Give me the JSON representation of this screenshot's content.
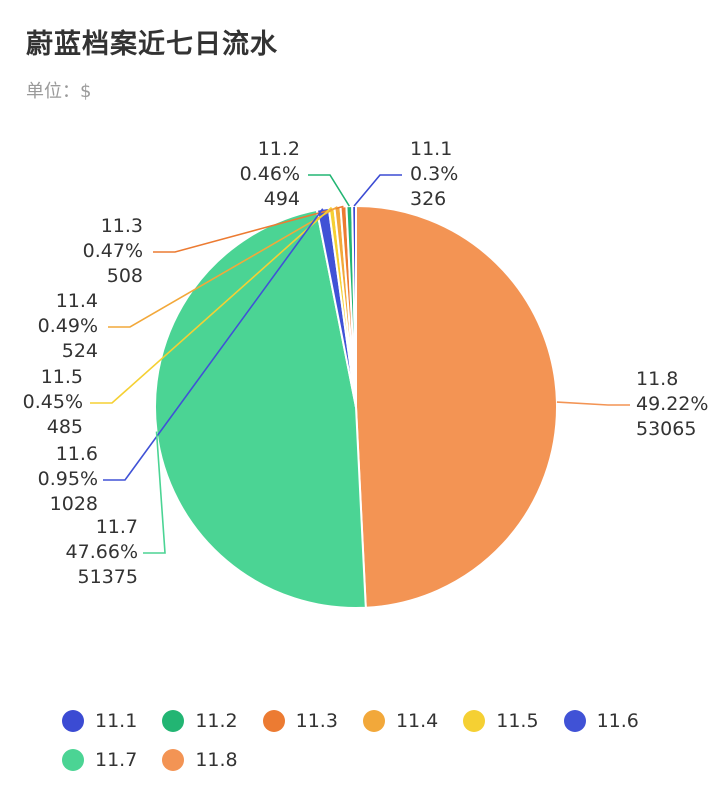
{
  "title": "蔚蓝档案近七日流水",
  "unit_label": "单位：$",
  "chart_data": {
    "type": "pie",
    "title": "蔚蓝档案近七日流水",
    "unit": "$",
    "legend_position": "bottom",
    "categories": [
      "11.1",
      "11.2",
      "11.3",
      "11.4",
      "11.5",
      "11.6",
      "11.7",
      "11.8"
    ],
    "values": [
      326,
      494,
      508,
      524,
      485,
      1028,
      51375,
      53065
    ],
    "percent_labels": [
      "0.3%",
      "0.46%",
      "0.47%",
      "0.49%",
      "0.45%",
      "0.95%",
      "47.66%",
      "49.22%"
    ],
    "value_labels": [
      "326",
      "494",
      "508",
      "524",
      "485",
      "1028",
      "51375",
      "53065"
    ],
    "colors": [
      "#3b4bd3",
      "#22b573",
      "#ec7b32",
      "#f2a83a",
      "#f5d033",
      "#4052d6",
      "#4bd494",
      "#f39454"
    ]
  }
}
